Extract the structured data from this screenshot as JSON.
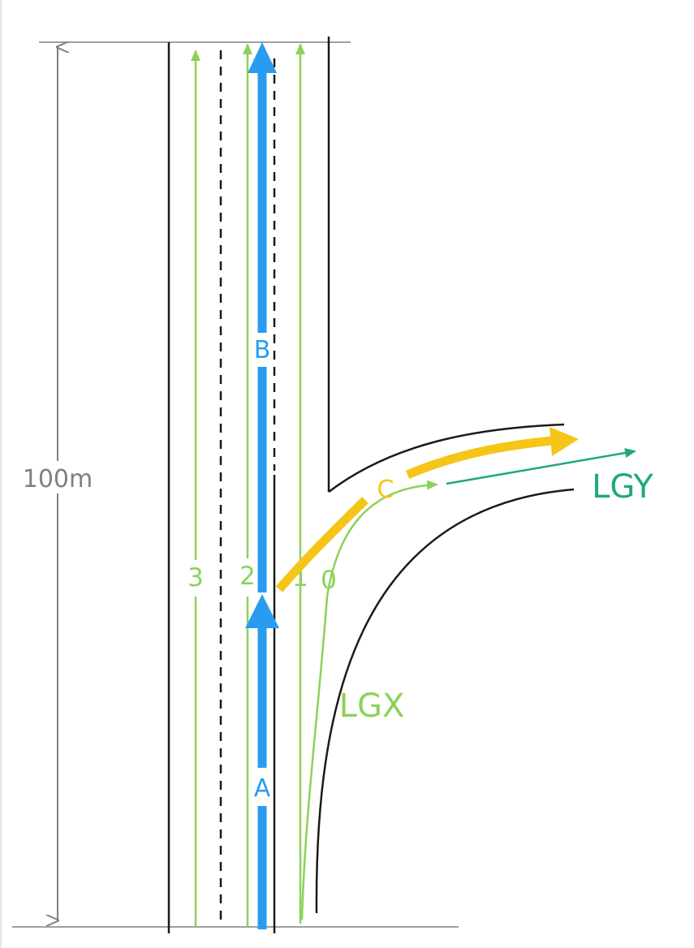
{
  "dimension": {
    "label": "100m"
  },
  "lanes": [
    {
      "id": "3",
      "label": "3"
    },
    {
      "id": "2",
      "label": "2"
    },
    {
      "id": "1",
      "label": "1"
    },
    {
      "id": "0",
      "label": "0"
    }
  ],
  "paths": [
    {
      "id": "A",
      "label": "A"
    },
    {
      "id": "B",
      "label": "B"
    },
    {
      "id": "C",
      "label": "C"
    }
  ],
  "lane_groups": [
    {
      "id": "LGX",
      "label": "LGX"
    },
    {
      "id": "LGY",
      "label": "LGY"
    }
  ],
  "colors": {
    "road_edge": "#1a1a1a",
    "dimension": "#808080",
    "lane_centerline": "#8cd25a",
    "path_blue": "#2a9cf0",
    "path_yellow": "#f5c518",
    "lgy": "#1ea882"
  }
}
